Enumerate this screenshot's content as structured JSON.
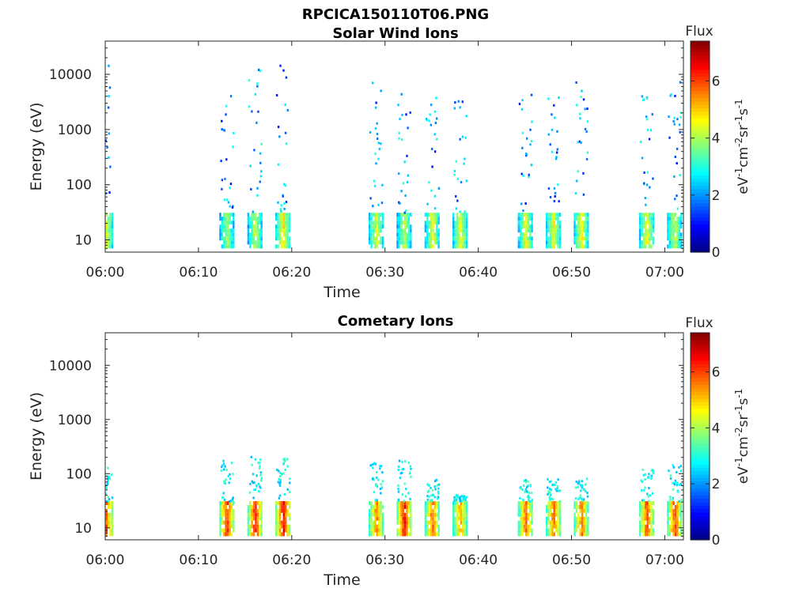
{
  "figure_title": "RPCICA150110T06.PNG",
  "chart_data": [
    {
      "type": "heatmap",
      "title": "Solar Wind Ions",
      "xlabel": "Time",
      "ylabel": "Energy (eV)",
      "x_ticks": [
        "06:00",
        "06:10",
        "06:20",
        "06:30",
        "06:40",
        "06:50",
        "07:00"
      ],
      "xlim": [
        "06:00",
        "07:02"
      ],
      "y_scale": "log",
      "y_ticks": [
        "10",
        "100",
        "1000",
        "10000"
      ],
      "ylim": [
        6,
        40000
      ],
      "colorbar": {
        "label": "Flux",
        "units": "eV-1cm-2sr-1s-1",
        "range": [
          0,
          7.4
        ],
        "ticks": [
          "0",
          "2",
          "4",
          "6"
        ],
        "colormap": "jet"
      },
      "bursts": [
        {
          "t": "06:00",
          "low_flux": 4.5,
          "high_max_energy": 17000
        },
        {
          "t": "06:13",
          "low_flux": 4.0,
          "high_max_energy": 6000
        },
        {
          "t": "06:16",
          "low_flux": 4.2,
          "high_max_energy": 12000
        },
        {
          "t": "06:19",
          "low_flux": 4.8,
          "high_max_energy": 25000
        },
        {
          "t": "06:29",
          "low_flux": 4.5,
          "high_max_energy": 8000
        },
        {
          "t": "06:32",
          "low_flux": 4.2,
          "high_max_energy": 5000
        },
        {
          "t": "06:35",
          "low_flux": 4.5,
          "high_max_energy": 6000
        },
        {
          "t": "06:38",
          "low_flux": 4.6,
          "high_max_energy": 4000
        },
        {
          "t": "06:45",
          "low_flux": 4.5,
          "high_max_energy": 6000
        },
        {
          "t": "06:48",
          "low_flux": 4.6,
          "high_max_energy": 7000
        },
        {
          "t": "06:51",
          "low_flux": 4.6,
          "high_max_energy": 7000
        },
        {
          "t": "06:58",
          "low_flux": 4.6,
          "high_max_energy": 4000
        },
        {
          "t": "07:01",
          "low_flux": 4.2,
          "high_max_energy": 9000
        }
      ]
    },
    {
      "type": "heatmap",
      "title": "Cometary Ions",
      "xlabel": "Time",
      "ylabel": "Energy (eV)",
      "x_ticks": [
        "06:00",
        "06:10",
        "06:20",
        "06:30",
        "06:40",
        "06:50",
        "07:00"
      ],
      "xlim": [
        "06:00",
        "07:02"
      ],
      "y_scale": "log",
      "y_ticks": [
        "10",
        "100",
        "1000",
        "10000"
      ],
      "ylim": [
        6,
        40000
      ],
      "colorbar": {
        "label": "Flux",
        "units": "eV-1cm-2sr-1s-1",
        "range": [
          0,
          7.4
        ],
        "ticks": [
          "0",
          "2",
          "4",
          "6"
        ],
        "colormap": "jet"
      },
      "bursts": [
        {
          "t": "06:00",
          "low_flux": 6.0,
          "high_max_energy": 160
        },
        {
          "t": "06:13",
          "low_flux": 6.2,
          "high_max_energy": 170
        },
        {
          "t": "06:16",
          "low_flux": 6.4,
          "high_max_energy": 200
        },
        {
          "t": "06:19",
          "low_flux": 6.6,
          "high_max_energy": 190
        },
        {
          "t": "06:29",
          "low_flux": 5.6,
          "high_max_energy": 160
        },
        {
          "t": "06:32",
          "low_flux": 6.6,
          "high_max_energy": 170
        },
        {
          "t": "06:35",
          "low_flux": 5.8,
          "high_max_energy": 80
        },
        {
          "t": "06:38",
          "low_flux": 5.4,
          "high_max_energy": 40
        },
        {
          "t": "06:45",
          "low_flux": 5.8,
          "high_max_energy": 80
        },
        {
          "t": "06:48",
          "low_flux": 5.8,
          "high_max_energy": 80
        },
        {
          "t": "06:51",
          "low_flux": 5.8,
          "high_max_energy": 80
        },
        {
          "t": "06:58",
          "low_flux": 6.0,
          "high_max_energy": 130
        },
        {
          "t": "07:01",
          "low_flux": 6.0,
          "high_max_energy": 150
        }
      ]
    }
  ]
}
